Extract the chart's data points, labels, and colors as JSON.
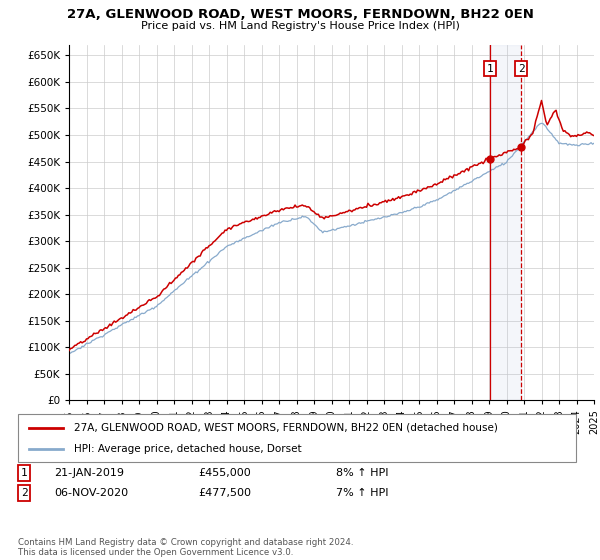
{
  "title1": "27A, GLENWOOD ROAD, WEST MOORS, FERNDOWN, BH22 0EN",
  "title2": "Price paid vs. HM Land Registry's House Price Index (HPI)",
  "legend_label1": "27A, GLENWOOD ROAD, WEST MOORS, FERNDOWN, BH22 0EN (detached house)",
  "legend_label2": "HPI: Average price, detached house, Dorset",
  "sale1_date": "21-JAN-2019",
  "sale1_price": "£455,000",
  "sale1_hpi": "8% ↑ HPI",
  "sale2_date": "06-NOV-2020",
  "sale2_price": "£477,500",
  "sale2_hpi": "7% ↑ HPI",
  "footer": "Contains HM Land Registry data © Crown copyright and database right 2024.\nThis data is licensed under the Open Government Licence v3.0.",
  "line1_color": "#cc0000",
  "line2_color": "#88aacc",
  "sale1_price_val": 455000,
  "sale2_price_val": 477500,
  "sale1_year": 2019.055,
  "sale2_year": 2020.847,
  "ylim_min": 0,
  "ylim_max": 670000,
  "yticks": [
    0,
    50000,
    100000,
    150000,
    200000,
    250000,
    300000,
    350000,
    400000,
    450000,
    500000,
    550000,
    600000,
    650000
  ],
  "ytick_labels": [
    "£0",
    "£50K",
    "£100K",
    "£150K",
    "£200K",
    "£250K",
    "£300K",
    "£350K",
    "£400K",
    "£450K",
    "£500K",
    "£550K",
    "£600K",
    "£650K"
  ],
  "xlim_min": 1995,
  "xlim_max": 2025
}
